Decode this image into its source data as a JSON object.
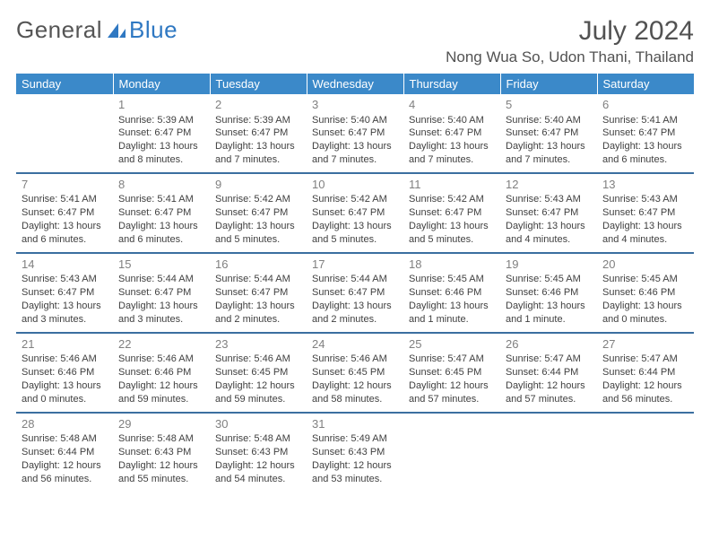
{
  "brand": {
    "word1": "General",
    "word2": "Blue"
  },
  "header": {
    "title": "July 2024",
    "location": "Nong Wua So, Udon Thani, Thailand"
  },
  "colors": {
    "header_bg": "#3b89c9",
    "header_text": "#ffffff",
    "row_border": "#3b6fa0",
    "day_num": "#808080",
    "body_text": "#404040",
    "brand_gray": "#555555",
    "brand_blue": "#2f78c2",
    "title_gray": "#525252",
    "page_bg": "#ffffff"
  },
  "typography": {
    "month_title_pt": 30,
    "location_pt": 17,
    "dayhead_pt": 13,
    "daynum_pt": 13,
    "body_pt": 11,
    "logo_pt": 26
  },
  "calendar": {
    "type": "table",
    "day_headers": [
      "Sunday",
      "Monday",
      "Tuesday",
      "Wednesday",
      "Thursday",
      "Friday",
      "Saturday"
    ],
    "weeks": [
      [
        null,
        {
          "d": "1",
          "sr": "5:39 AM",
          "ss": "6:47 PM",
          "dl": "13 hours and 8 minutes."
        },
        {
          "d": "2",
          "sr": "5:39 AM",
          "ss": "6:47 PM",
          "dl": "13 hours and 7 minutes."
        },
        {
          "d": "3",
          "sr": "5:40 AM",
          "ss": "6:47 PM",
          "dl": "13 hours and 7 minutes."
        },
        {
          "d": "4",
          "sr": "5:40 AM",
          "ss": "6:47 PM",
          "dl": "13 hours and 7 minutes."
        },
        {
          "d": "5",
          "sr": "5:40 AM",
          "ss": "6:47 PM",
          "dl": "13 hours and 7 minutes."
        },
        {
          "d": "6",
          "sr": "5:41 AM",
          "ss": "6:47 PM",
          "dl": "13 hours and 6 minutes."
        }
      ],
      [
        {
          "d": "7",
          "sr": "5:41 AM",
          "ss": "6:47 PM",
          "dl": "13 hours and 6 minutes."
        },
        {
          "d": "8",
          "sr": "5:41 AM",
          "ss": "6:47 PM",
          "dl": "13 hours and 6 minutes."
        },
        {
          "d": "9",
          "sr": "5:42 AM",
          "ss": "6:47 PM",
          "dl": "13 hours and 5 minutes."
        },
        {
          "d": "10",
          "sr": "5:42 AM",
          "ss": "6:47 PM",
          "dl": "13 hours and 5 minutes."
        },
        {
          "d": "11",
          "sr": "5:42 AM",
          "ss": "6:47 PM",
          "dl": "13 hours and 5 minutes."
        },
        {
          "d": "12",
          "sr": "5:43 AM",
          "ss": "6:47 PM",
          "dl": "13 hours and 4 minutes."
        },
        {
          "d": "13",
          "sr": "5:43 AM",
          "ss": "6:47 PM",
          "dl": "13 hours and 4 minutes."
        }
      ],
      [
        {
          "d": "14",
          "sr": "5:43 AM",
          "ss": "6:47 PM",
          "dl": "13 hours and 3 minutes."
        },
        {
          "d": "15",
          "sr": "5:44 AM",
          "ss": "6:47 PM",
          "dl": "13 hours and 3 minutes."
        },
        {
          "d": "16",
          "sr": "5:44 AM",
          "ss": "6:47 PM",
          "dl": "13 hours and 2 minutes."
        },
        {
          "d": "17",
          "sr": "5:44 AM",
          "ss": "6:47 PM",
          "dl": "13 hours and 2 minutes."
        },
        {
          "d": "18",
          "sr": "5:45 AM",
          "ss": "6:46 PM",
          "dl": "13 hours and 1 minute."
        },
        {
          "d": "19",
          "sr": "5:45 AM",
          "ss": "6:46 PM",
          "dl": "13 hours and 1 minute."
        },
        {
          "d": "20",
          "sr": "5:45 AM",
          "ss": "6:46 PM",
          "dl": "13 hours and 0 minutes."
        }
      ],
      [
        {
          "d": "21",
          "sr": "5:46 AM",
          "ss": "6:46 PM",
          "dl": "13 hours and 0 minutes."
        },
        {
          "d": "22",
          "sr": "5:46 AM",
          "ss": "6:46 PM",
          "dl": "12 hours and 59 minutes."
        },
        {
          "d": "23",
          "sr": "5:46 AM",
          "ss": "6:45 PM",
          "dl": "12 hours and 59 minutes."
        },
        {
          "d": "24",
          "sr": "5:46 AM",
          "ss": "6:45 PM",
          "dl": "12 hours and 58 minutes."
        },
        {
          "d": "25",
          "sr": "5:47 AM",
          "ss": "6:45 PM",
          "dl": "12 hours and 57 minutes."
        },
        {
          "d": "26",
          "sr": "5:47 AM",
          "ss": "6:44 PM",
          "dl": "12 hours and 57 minutes."
        },
        {
          "d": "27",
          "sr": "5:47 AM",
          "ss": "6:44 PM",
          "dl": "12 hours and 56 minutes."
        }
      ],
      [
        {
          "d": "28",
          "sr": "5:48 AM",
          "ss": "6:44 PM",
          "dl": "12 hours and 56 minutes."
        },
        {
          "d": "29",
          "sr": "5:48 AM",
          "ss": "6:43 PM",
          "dl": "12 hours and 55 minutes."
        },
        {
          "d": "30",
          "sr": "5:48 AM",
          "ss": "6:43 PM",
          "dl": "12 hours and 54 minutes."
        },
        {
          "d": "31",
          "sr": "5:49 AM",
          "ss": "6:43 PM",
          "dl": "12 hours and 53 minutes."
        },
        null,
        null,
        null
      ]
    ],
    "labels": {
      "sunrise": "Sunrise:",
      "sunset": "Sunset:",
      "daylight": "Daylight:"
    }
  }
}
